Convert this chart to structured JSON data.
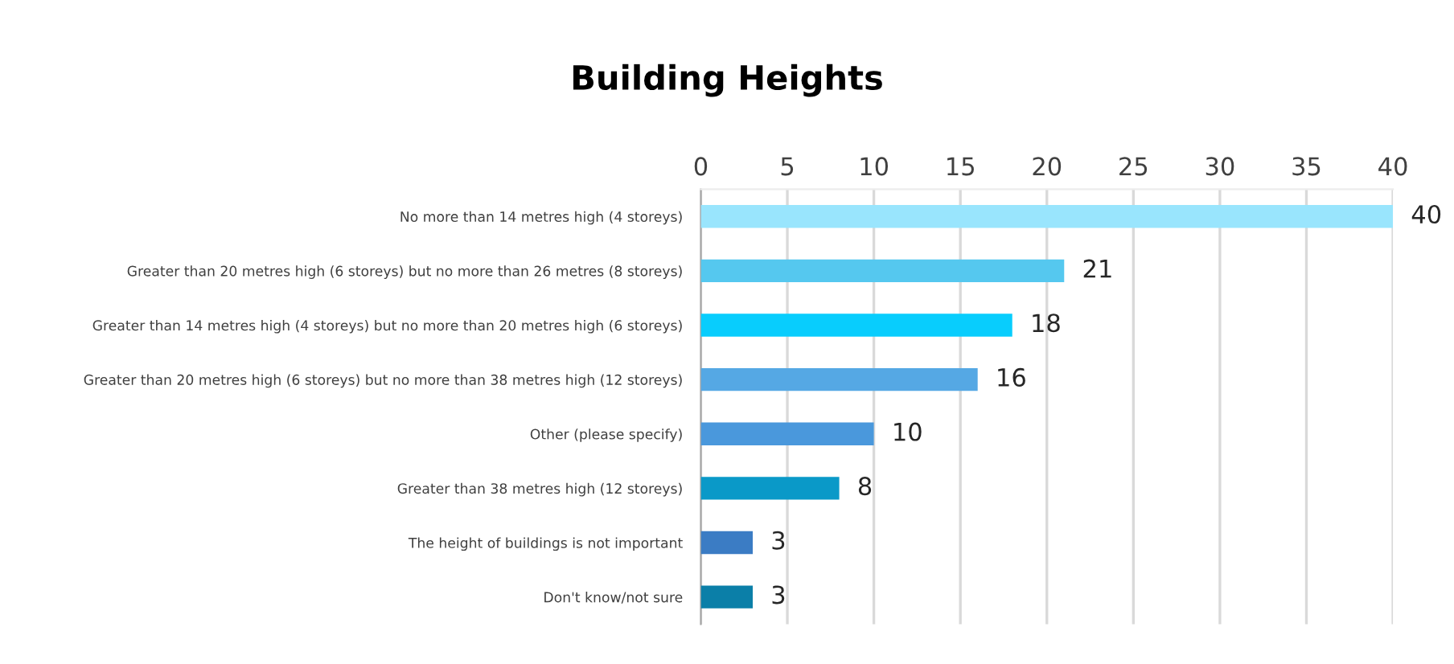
{
  "chart_data": {
    "type": "bar",
    "orientation": "horizontal",
    "title": "Building Heights",
    "categories": [
      "No more than 14 metres high (4 storeys)",
      "Greater than 20 metres high (6 storeys) but no more than 26 metres (8 storeys)",
      "Greater than 14 metres high (4 storeys) but no more than 20 metres high (6 storeys)",
      "Greater than 20 metres high (6 storeys) but no more than 38 metres high (12 storeys)",
      "Other (please specify)",
      "Greater than 38 metres high (12 storeys)",
      "The height of buildings is not important",
      "Don't know/not sure"
    ],
    "values": [
      40,
      21,
      18,
      16,
      10,
      8,
      3,
      3
    ],
    "colors": [
      "#99e5fd",
      "#55c8ef",
      "#08cdfd",
      "#55a8e4",
      "#4a98dc",
      "#0a99c8",
      "#3b7cc4",
      "#0b7fa8"
    ],
    "xlim": [
      0,
      40
    ],
    "xticks": [
      0,
      5,
      10,
      15,
      20,
      25,
      30,
      35,
      40
    ],
    "grid": "x",
    "data_labels": true
  }
}
